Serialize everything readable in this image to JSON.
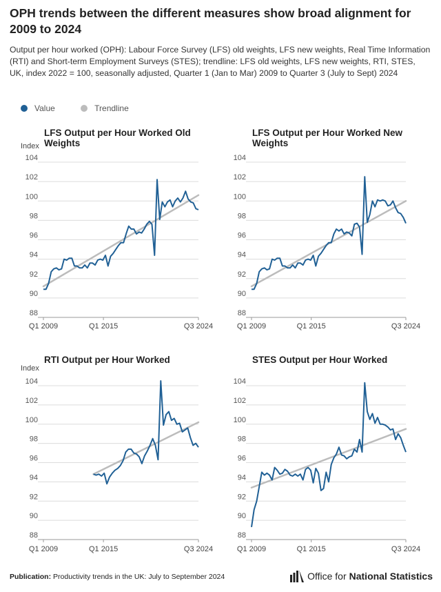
{
  "title": "OPH trends between the different measures show broad alignment for 2009 to 2024",
  "subtitle": "Output per hour worked (OPH): Labour Force Survey (LFS) old weights, LFS new weights, Real Time Information (RTI) and Short-term Employment Surveys (STES); trendline: LFS old weights, LFS new weights, RTI, STES, UK, index 2022 = 100, seasonally adjusted, Quarter 1 (Jan to Mar) 2009 to Quarter 3 (July to Sept) 2024",
  "legend": [
    {
      "label": "Value",
      "color": "#206095"
    },
    {
      "label": "Trendline",
      "color": "#bcbcbc"
    }
  ],
  "footer": {
    "label": "Publication:",
    "text": "Productivity trends in the UK: July to September 2024"
  },
  "logo": {
    "prefix": "Office for",
    "strong": "National Statistics"
  },
  "colors": {
    "value": "#206095",
    "trend": "#bcbcbc",
    "grid": "#dcdcdc",
    "axis": "#999999"
  },
  "chart_data": [
    {
      "type": "line",
      "title": "LFS Output per Hour Worked Old Weights",
      "ylabel": "Index",
      "ylim": [
        88,
        104
      ],
      "yticks": [
        88,
        90,
        92,
        94,
        96,
        98,
        100,
        102,
        104
      ],
      "xtick_labels": [
        "Q1 2009",
        "Q1 2015",
        "Q3 2024"
      ],
      "x_start": "Q1 2009",
      "x_end": "Q3 2024",
      "series": [
        {
          "name": "Value",
          "start": "Q1 2009",
          "values": [
            90.9,
            90.9,
            91.5,
            92.7,
            93.0,
            93.1,
            92.9,
            93.0,
            94.0,
            93.9,
            94.1,
            94.1,
            93.3,
            93.3,
            93.1,
            93.1,
            93.4,
            93.1,
            93.6,
            93.6,
            93.4,
            93.9,
            94.0,
            93.9,
            94.4,
            93.3,
            94.3,
            94.6,
            95.0,
            95.4,
            95.7,
            95.7,
            96.6,
            97.4,
            97.1,
            97.1,
            96.6,
            96.8,
            96.7,
            97.1,
            97.6,
            97.9,
            97.6,
            94.4,
            102.2,
            98.1,
            99.9,
            99.4,
            99.9,
            100.1,
            99.4,
            100.0,
            100.3,
            99.9,
            100.3,
            101.0,
            100.2,
            99.9,
            99.8,
            99.2,
            99.1
          ]
        },
        {
          "name": "Trendline",
          "start": "Q1 2009",
          "values": [
            91.2,
            100.6
          ]
        }
      ]
    },
    {
      "type": "line",
      "title": "LFS Output per Hour Worked New Weights",
      "ylim": [
        88,
        104
      ],
      "yticks": [
        88,
        90,
        92,
        94,
        96,
        98,
        100,
        102,
        104
      ],
      "xtick_labels": [
        "Q1 2009",
        "Q1 2015",
        "Q3 2024"
      ],
      "x_start": "Q1 2009",
      "x_end": "Q3 2024",
      "series": [
        {
          "name": "Value",
          "start": "Q1 2009",
          "values": [
            90.9,
            90.9,
            91.5,
            92.7,
            93.0,
            93.1,
            92.9,
            93.0,
            94.0,
            93.9,
            94.1,
            94.1,
            93.3,
            93.3,
            93.1,
            93.1,
            93.4,
            93.1,
            93.6,
            93.6,
            93.4,
            93.9,
            94.0,
            93.9,
            94.4,
            93.3,
            94.3,
            94.6,
            95.0,
            95.4,
            95.7,
            95.7,
            96.6,
            97.1,
            96.9,
            97.1,
            96.6,
            96.8,
            96.7,
            96.4,
            97.6,
            97.7,
            97.3,
            94.5,
            102.5,
            97.8,
            98.6,
            100.0,
            99.4,
            100.1,
            100.0,
            100.1,
            100.0,
            99.5,
            99.6,
            100.0,
            99.3,
            98.8,
            98.7,
            98.3,
            97.7
          ]
        },
        {
          "name": "Trendline",
          "start": "Q1 2009",
          "values": [
            91.2,
            100.0
          ]
        }
      ]
    },
    {
      "type": "line",
      "title": "RTI Output per Hour Worked",
      "ylabel": "Index",
      "ylim": [
        88,
        105
      ],
      "yticks": [
        88,
        90,
        92,
        94,
        96,
        98,
        100,
        102,
        104
      ],
      "xtick_labels": [
        "Q1 2009",
        "Q1 2015",
        "Q3 2024"
      ],
      "x_start": "Q1 2009",
      "x_end": "Q3 2024",
      "series": [
        {
          "name": "Value",
          "start": "Q1 2014",
          "values": [
            94.8,
            94.7,
            94.8,
            94.6,
            94.9,
            93.8,
            94.5,
            94.9,
            95.2,
            95.4,
            95.7,
            96.2,
            97.1,
            97.4,
            97.4,
            97.0,
            96.9,
            96.6,
            95.9,
            96.7,
            97.2,
            97.8,
            98.5,
            97.8,
            96.3,
            104.5,
            99.9,
            101.0,
            101.3,
            100.4,
            100.6,
            100.0,
            100.1,
            99.2,
            99.4,
            99.6,
            98.6,
            97.8,
            98.0,
            97.6
          ]
        },
        {
          "name": "Trendline",
          "start": "Q1 2014",
          "values": [
            94.8,
            100.2
          ]
        }
      ]
    },
    {
      "type": "line",
      "title": "STES Output per Hour Worked",
      "ylim": [
        88,
        105
      ],
      "yticks": [
        88,
        90,
        92,
        94,
        96,
        98,
        100,
        102,
        104
      ],
      "xtick_labels": [
        "Q1 2009",
        "Q1 2015",
        "Q3 2024"
      ],
      "x_start": "Q1 2009",
      "x_end": "Q3 2024",
      "series": [
        {
          "name": "Value",
          "start": "Q1 2009",
          "values": [
            89.3,
            91.1,
            92.0,
            93.5,
            95.0,
            94.7,
            94.9,
            94.7,
            94.2,
            95.5,
            95.2,
            94.8,
            94.9,
            95.3,
            95.1,
            94.7,
            94.6,
            94.8,
            94.6,
            94.8,
            94.2,
            95.3,
            95.5,
            95.2,
            93.9,
            95.4,
            94.9,
            93.1,
            93.3,
            95.0,
            94.0,
            95.8,
            96.5,
            96.9,
            97.6,
            96.8,
            96.7,
            96.4,
            96.6,
            96.7,
            97.4,
            97.1,
            98.4,
            97.1,
            104.3,
            101.3,
            100.5,
            101.1,
            100.1,
            100.7,
            100.0,
            100.0,
            99.9,
            99.7,
            99.4,
            99.5,
            98.4,
            99.0,
            98.6,
            97.8,
            97.1
          ]
        },
        {
          "name": "Trendline",
          "start": "Q1 2009",
          "values": [
            93.4,
            99.5
          ]
        }
      ]
    }
  ]
}
